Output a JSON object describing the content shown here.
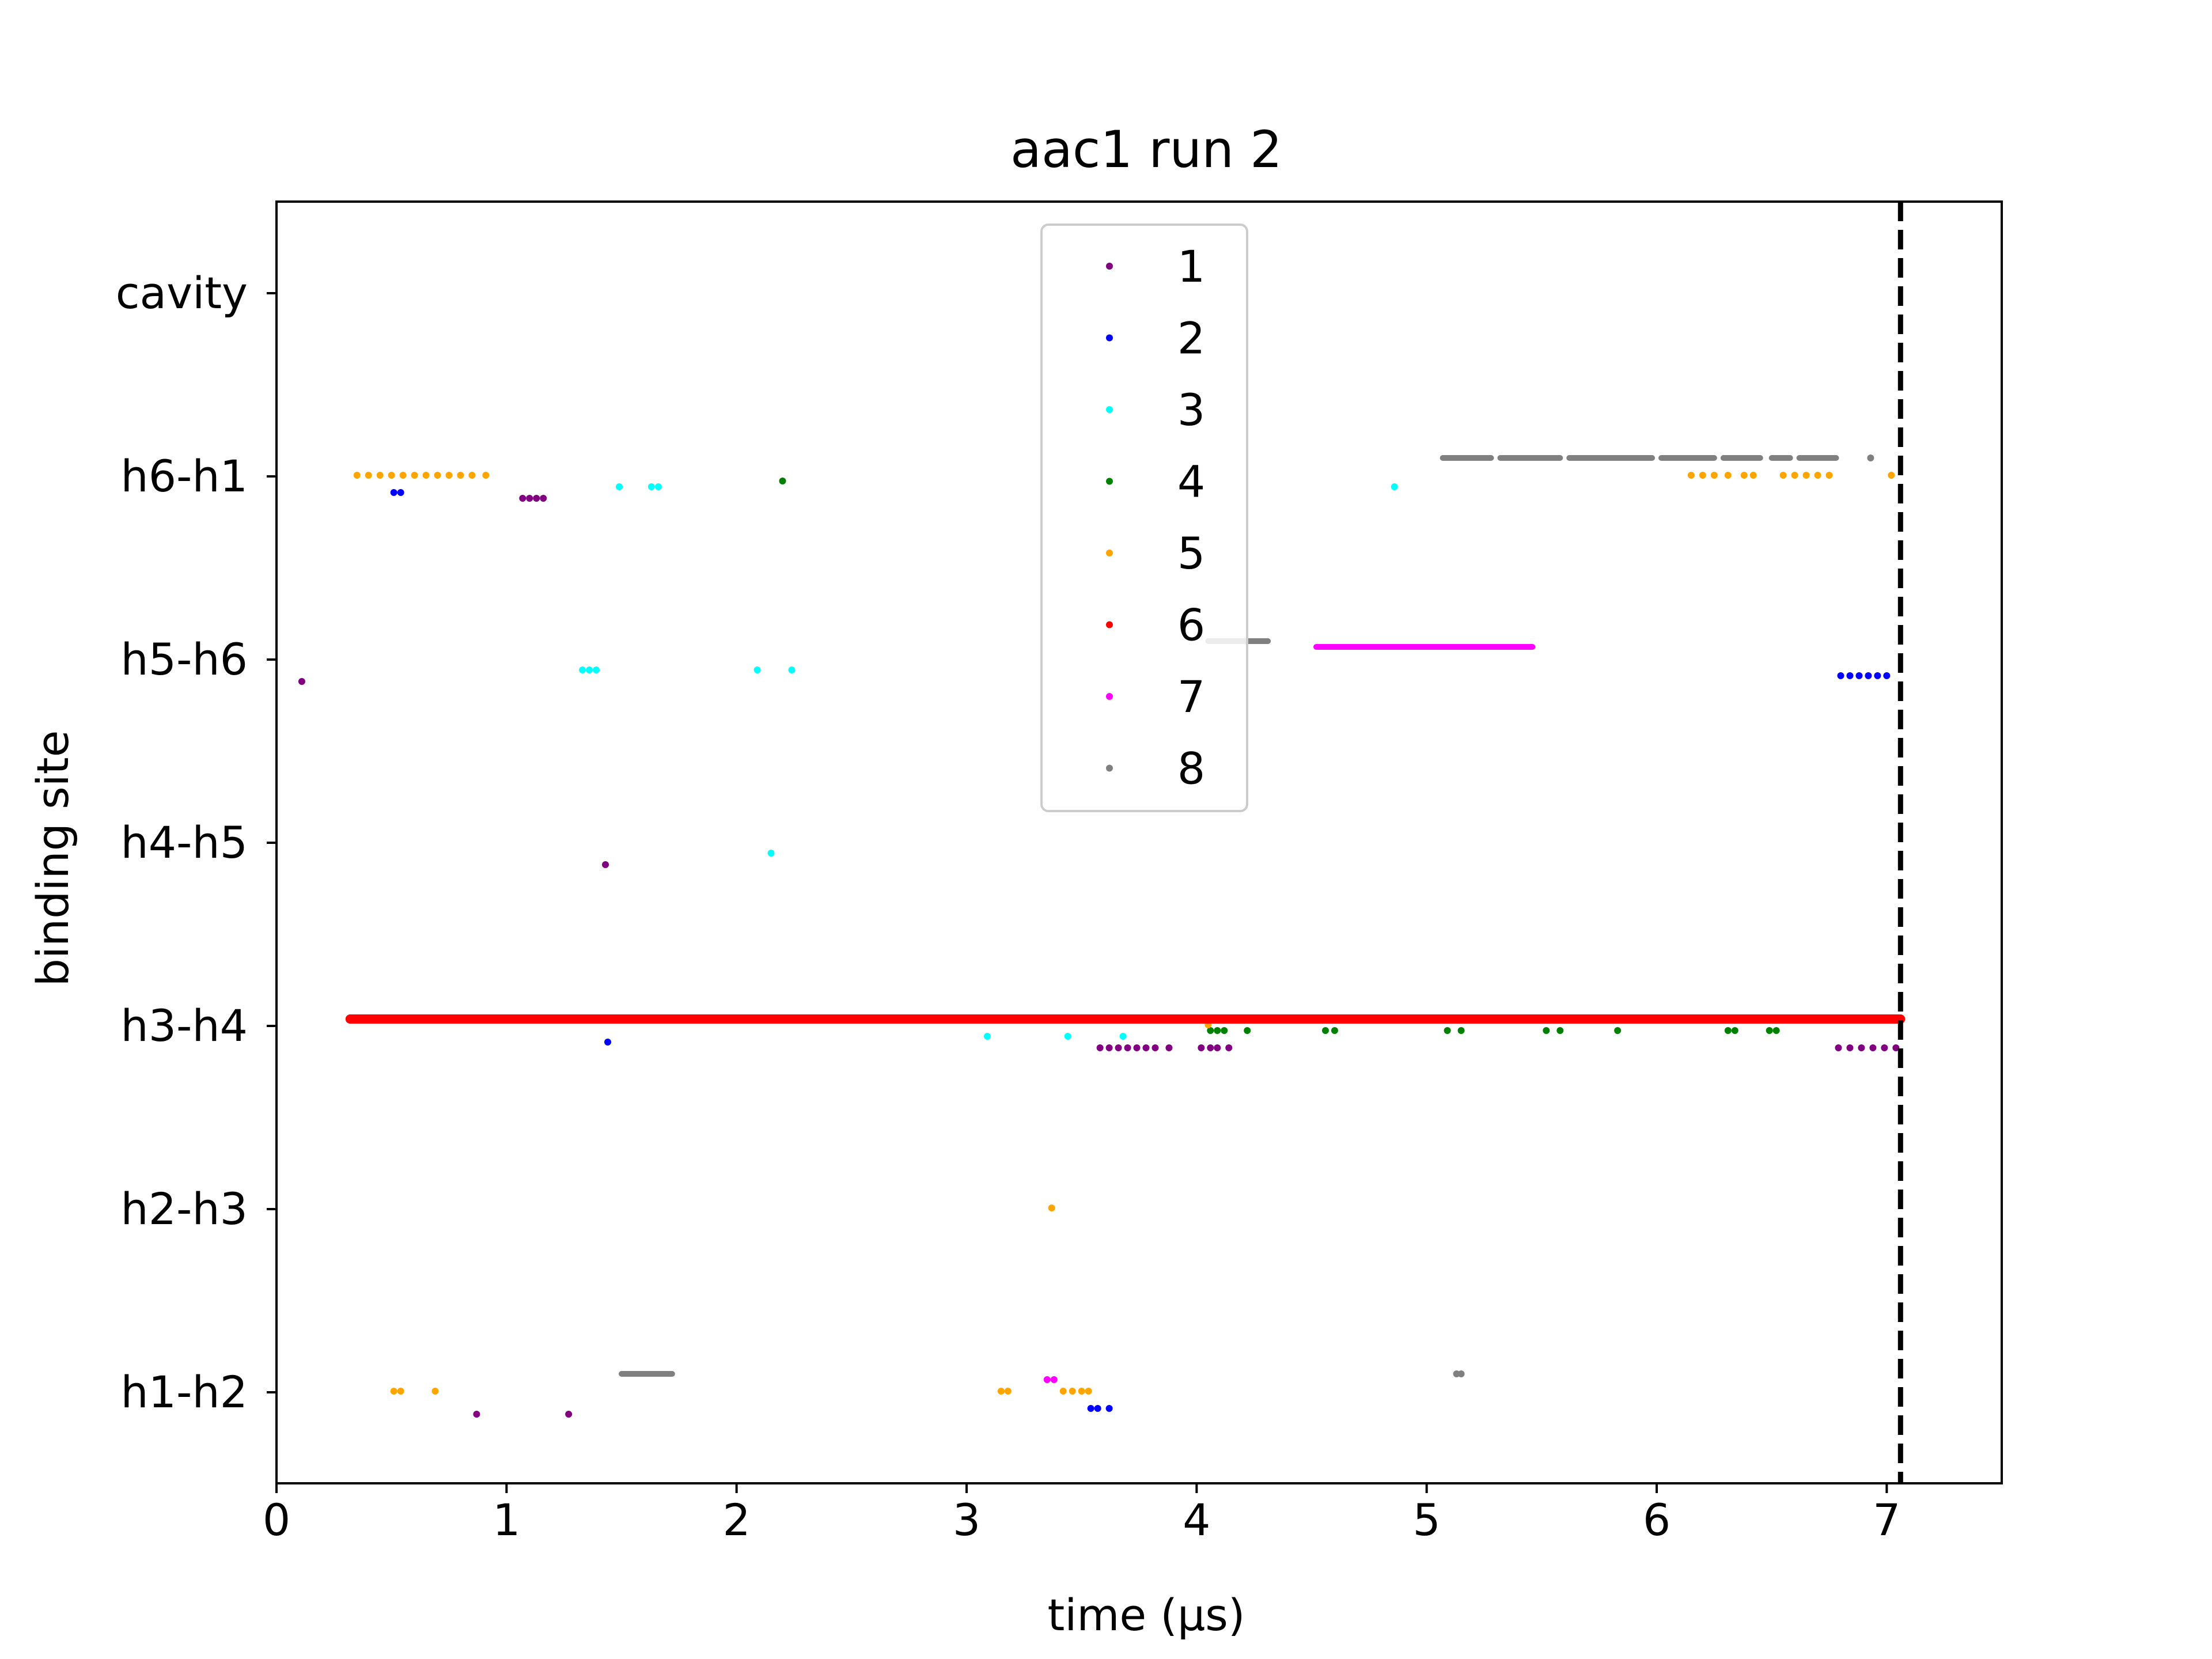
{
  "chart_data": {
    "type": "scatter",
    "title": "aac1 run 2",
    "xlabel": "time (μs)",
    "ylabel": "binding site",
    "xlim": [
      0,
      7.5
    ],
    "x_ticks": [
      0,
      1,
      2,
      3,
      4,
      5,
      6,
      7
    ],
    "x_tick_labels": [
      "0",
      "1",
      "2",
      "3",
      "4",
      "5",
      "6",
      "7"
    ],
    "categories": [
      "h1-h2",
      "h2-h3",
      "h3-h4",
      "h4-h5",
      "h5-h6",
      "h6-h1",
      "cavity"
    ],
    "grid": false,
    "legend_position": "upper center",
    "vline": {
      "x": 7.06,
      "style": "dashed",
      "color": "#000000"
    },
    "series": [
      {
        "name": "1",
        "color": "#800080",
        "points": [
          {
            "x": 0.11,
            "site": "h5-h6"
          },
          {
            "x": 0.87,
            "site": "h1-h2"
          },
          {
            "x": 1.27,
            "site": "h1-h2"
          },
          {
            "x": 1.07,
            "site": "h6-h1"
          },
          {
            "x": 1.1,
            "site": "h6-h1"
          },
          {
            "x": 1.13,
            "site": "h6-h1"
          },
          {
            "x": 1.16,
            "site": "h6-h1"
          },
          {
            "x": 1.43,
            "site": "h4-h5"
          },
          {
            "x": 3.58,
            "site": "h3-h4"
          },
          {
            "x": 3.62,
            "site": "h3-h4"
          },
          {
            "x": 3.66,
            "site": "h3-h4"
          },
          {
            "x": 3.7,
            "site": "h3-h4"
          },
          {
            "x": 3.74,
            "site": "h3-h4"
          },
          {
            "x": 3.78,
            "site": "h3-h4"
          },
          {
            "x": 3.82,
            "site": "h3-h4"
          },
          {
            "x": 3.88,
            "site": "h3-h4"
          },
          {
            "x": 4.02,
            "site": "h3-h4"
          },
          {
            "x": 4.06,
            "site": "h3-h4"
          },
          {
            "x": 4.09,
            "site": "h3-h4"
          },
          {
            "x": 4.14,
            "site": "h3-h4"
          },
          {
            "x": 6.79,
            "site": "h3-h4"
          },
          {
            "x": 6.84,
            "site": "h3-h4"
          },
          {
            "x": 6.89,
            "site": "h3-h4"
          },
          {
            "x": 6.94,
            "site": "h3-h4"
          },
          {
            "x": 6.99,
            "site": "h3-h4"
          },
          {
            "x": 7.04,
            "site": "h3-h4"
          }
        ]
      },
      {
        "name": "2",
        "color": "#0000ff",
        "points": [
          {
            "x": 0.51,
            "site": "h6-h1"
          },
          {
            "x": 0.54,
            "site": "h6-h1"
          },
          {
            "x": 1.44,
            "site": "h3-h4"
          },
          {
            "x": 3.54,
            "site": "h1-h2"
          },
          {
            "x": 3.57,
            "site": "h1-h2"
          },
          {
            "x": 3.62,
            "site": "h1-h2"
          },
          {
            "x": 6.8,
            "site": "h5-h6"
          },
          {
            "x": 6.84,
            "site": "h5-h6"
          },
          {
            "x": 6.88,
            "site": "h5-h6"
          },
          {
            "x": 6.92,
            "site": "h5-h6"
          },
          {
            "x": 6.96,
            "site": "h5-h6"
          },
          {
            "x": 7.0,
            "site": "h5-h6"
          }
        ]
      },
      {
        "name": "3",
        "color": "#00ffff",
        "points": [
          {
            "x": 1.33,
            "site": "h5-h6"
          },
          {
            "x": 1.36,
            "site": "h5-h6"
          },
          {
            "x": 1.39,
            "site": "h5-h6"
          },
          {
            "x": 1.49,
            "site": "h6-h1"
          },
          {
            "x": 1.63,
            "site": "h6-h1"
          },
          {
            "x": 1.66,
            "site": "h6-h1"
          },
          {
            "x": 2.09,
            "site": "h5-h6"
          },
          {
            "x": 2.24,
            "site": "h5-h6"
          },
          {
            "x": 2.15,
            "site": "h4-h5"
          },
          {
            "x": 3.09,
            "site": "h3-h4"
          },
          {
            "x": 3.44,
            "site": "h3-h4"
          },
          {
            "x": 3.68,
            "site": "h3-h4"
          },
          {
            "x": 4.86,
            "site": "h6-h1"
          }
        ]
      },
      {
        "name": "4",
        "color": "#008000",
        "points": [
          {
            "x": 2.2,
            "site": "h6-h1"
          },
          {
            "x": 4.06,
            "site": "h3-h4"
          },
          {
            "x": 4.09,
            "site": "h3-h4"
          },
          {
            "x": 4.12,
            "site": "h3-h4"
          },
          {
            "x": 4.22,
            "site": "h3-h4"
          },
          {
            "x": 4.56,
            "site": "h3-h4"
          },
          {
            "x": 4.6,
            "site": "h3-h4"
          },
          {
            "x": 5.09,
            "site": "h3-h4"
          },
          {
            "x": 5.15,
            "site": "h3-h4"
          },
          {
            "x": 5.52,
            "site": "h3-h4"
          },
          {
            "x": 5.58,
            "site": "h3-h4"
          },
          {
            "x": 5.83,
            "site": "h3-h4"
          },
          {
            "x": 6.31,
            "site": "h3-h4"
          },
          {
            "x": 6.34,
            "site": "h3-h4"
          },
          {
            "x": 6.49,
            "site": "h3-h4"
          },
          {
            "x": 6.52,
            "site": "h3-h4"
          }
        ]
      },
      {
        "name": "5",
        "color": "#ffa500",
        "points": [
          {
            "x": 0.35,
            "site": "h6-h1"
          },
          {
            "x": 0.4,
            "site": "h6-h1"
          },
          {
            "x": 0.45,
            "site": "h6-h1"
          },
          {
            "x": 0.5,
            "site": "h6-h1"
          },
          {
            "x": 0.55,
            "site": "h6-h1"
          },
          {
            "x": 0.6,
            "site": "h6-h1"
          },
          {
            "x": 0.65,
            "site": "h6-h1"
          },
          {
            "x": 0.7,
            "site": "h6-h1"
          },
          {
            "x": 0.75,
            "site": "h6-h1"
          },
          {
            "x": 0.8,
            "site": "h6-h1"
          },
          {
            "x": 0.85,
            "site": "h6-h1"
          },
          {
            "x": 0.91,
            "site": "h6-h1"
          },
          {
            "x": 0.51,
            "site": "h1-h2"
          },
          {
            "x": 0.54,
            "site": "h1-h2"
          },
          {
            "x": 0.69,
            "site": "h1-h2"
          },
          {
            "x": 3.15,
            "site": "h1-h2"
          },
          {
            "x": 3.18,
            "site": "h1-h2"
          },
          {
            "x": 3.37,
            "site": "h2-h3"
          },
          {
            "x": 3.42,
            "site": "h1-h2"
          },
          {
            "x": 3.46,
            "site": "h1-h2"
          },
          {
            "x": 3.5,
            "site": "h1-h2"
          },
          {
            "x": 3.53,
            "site": "h1-h2"
          },
          {
            "x": 4.05,
            "site": "h3-h4"
          },
          {
            "x": 6.15,
            "site": "h6-h1"
          },
          {
            "x": 6.2,
            "site": "h6-h1"
          },
          {
            "x": 6.25,
            "site": "h6-h1"
          },
          {
            "x": 6.31,
            "site": "h6-h1"
          },
          {
            "x": 6.38,
            "site": "h6-h1"
          },
          {
            "x": 6.42,
            "site": "h6-h1"
          },
          {
            "x": 6.55,
            "site": "h6-h1"
          },
          {
            "x": 6.6,
            "site": "h6-h1"
          },
          {
            "x": 6.65,
            "site": "h6-h1"
          },
          {
            "x": 6.7,
            "site": "h6-h1"
          },
          {
            "x": 6.75,
            "site": "h6-h1"
          },
          {
            "x": 7.02,
            "site": "h6-h1"
          }
        ]
      },
      {
        "name": "6",
        "color": "#ff0000",
        "segments": [
          {
            "x_start": 0.32,
            "x_end": 7.06,
            "site": "h3-h4"
          }
        ]
      },
      {
        "name": "7",
        "color": "#ff00ff",
        "points": [
          {
            "x": 3.35,
            "site": "h1-h2"
          },
          {
            "x": 3.38,
            "site": "h1-h2"
          }
        ],
        "segments": [
          {
            "x_start": 4.52,
            "x_end": 5.46,
            "site": "h5-h6"
          }
        ]
      },
      {
        "name": "8",
        "color": "#808080",
        "points": [
          {
            "x": 5.13,
            "site": "h1-h2"
          },
          {
            "x": 5.15,
            "site": "h1-h2"
          },
          {
            "x": 6.93,
            "site": "h6-h1"
          }
        ],
        "segments": [
          {
            "x_start": 1.5,
            "x_end": 1.72,
            "site": "h1-h2"
          },
          {
            "x_start": 4.05,
            "x_end": 4.31,
            "site": "h5-h6"
          },
          {
            "x_start": 5.07,
            "x_end": 5.28,
            "site": "h6-h1"
          },
          {
            "x_start": 5.32,
            "x_end": 5.58,
            "site": "h6-h1"
          },
          {
            "x_start": 5.62,
            "x_end": 5.98,
            "site": "h6-h1"
          },
          {
            "x_start": 6.02,
            "x_end": 6.25,
            "site": "h6-h1"
          },
          {
            "x_start": 6.29,
            "x_end": 6.45,
            "site": "h6-h1"
          },
          {
            "x_start": 6.5,
            "x_end": 6.58,
            "site": "h6-h1"
          },
          {
            "x_start": 6.62,
            "x_end": 6.78,
            "site": "h6-h1"
          }
        ]
      }
    ]
  }
}
